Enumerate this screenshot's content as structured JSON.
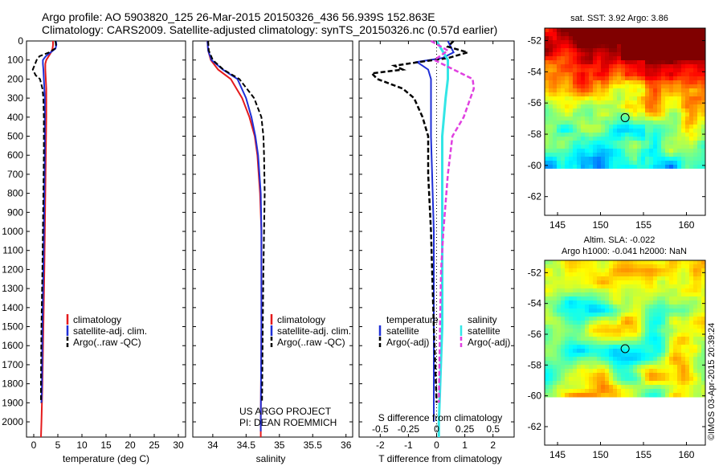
{
  "header": {
    "line1": "Argo profile: AO 5903820_125 26-Mar-2015 20150326_436 56.939S 152.863E",
    "line2": "Climatology: CARS2009. Satellite-adjusted climatology: synTS_20150326.nc (0.57d earlier)"
  },
  "colors": {
    "climatology": "#e41a1c",
    "satellite": "#1f2fd6",
    "argo": "#000000",
    "salinity_satellite": "#33e6e6",
    "salinity_argo": "#e040e0"
  },
  "chart_data": [
    {
      "type": "line",
      "id": "temperature",
      "xlabel": "temperature (deg C)",
      "xlim": [
        -1.5,
        31.5
      ],
      "xticks": [
        "0",
        "5",
        "10",
        "15",
        "20",
        "25",
        "30"
      ],
      "ylim": [
        2080,
        0
      ],
      "yticks": [
        "0",
        "100",
        "200",
        "300",
        "400",
        "500",
        "600",
        "700",
        "800",
        "900",
        "1000",
        "1100",
        "1200",
        "1300",
        "1400",
        "1500",
        "1600",
        "1700",
        "1800",
        "1900",
        "2000"
      ],
      "legend": [
        "climatology",
        "satellite-adj. clim.",
        "Argo(..raw -QC)"
      ],
      "series": [
        {
          "name": "climatology",
          "depth": [
            0,
            20,
            40,
            60,
            80,
            100,
            120,
            150,
            200,
            250,
            300,
            400,
            600,
            800,
            1000,
            1200,
            1500,
            1800,
            2000,
            2080
          ],
          "values": [
            4.0,
            4.0,
            3.9,
            3.6,
            3.1,
            2.6,
            2.4,
            2.4,
            2.5,
            2.6,
            2.6,
            2.6,
            2.5,
            2.4,
            2.3,
            2.2,
            2.0,
            1.8,
            1.6,
            1.5
          ]
        },
        {
          "name": "satellite-adj. clim.",
          "depth": [
            0,
            20,
            40,
            60,
            80,
            100,
            120,
            150,
            200,
            250,
            300,
            400,
            600,
            800,
            1000,
            1200,
            1500,
            1800,
            1900
          ],
          "values": [
            4.6,
            4.7,
            4.5,
            3.5,
            2.5,
            1.9,
            1.9,
            2.0,
            2.1,
            2.2,
            2.3,
            2.3,
            2.3,
            2.2,
            2.1,
            2.0,
            1.8,
            1.7,
            1.6
          ]
        },
        {
          "name": "Argo(..raw -QC)",
          "depth": [
            0,
            20,
            40,
            60,
            80,
            100,
            120,
            150,
            180,
            200,
            250,
            300,
            400,
            600,
            800,
            1000,
            1200,
            1500,
            1800,
            1900
          ],
          "values": [
            4.5,
            4.6,
            4.4,
            3.2,
            1.2,
            0.6,
            0.3,
            -0.2,
            0.4,
            1.3,
            1.8,
            2.0,
            2.1,
            2.1,
            2.0,
            1.9,
            1.8,
            1.6,
            1.5,
            1.5
          ]
        }
      ]
    },
    {
      "type": "line",
      "id": "salinity",
      "xlabel": "salinity",
      "xlim": [
        33.7,
        36.1
      ],
      "xticks": [
        "34",
        "34.5",
        "35",
        "35.5",
        "36"
      ],
      "ylim": [
        2080,
        0
      ],
      "legend": [
        "climatology",
        "satellite-adj. clim.",
        "Argo(..raw -QC)"
      ],
      "annotation": [
        "US ARGO PROJECT",
        "PI: DEAN ROEMMICH"
      ],
      "series": [
        {
          "name": "climatology",
          "depth": [
            0,
            50,
            100,
            150,
            200,
            300,
            400,
            500,
            600,
            800,
            1000,
            1200,
            1500,
            2000,
            2080
          ],
          "values": [
            33.92,
            33.93,
            33.97,
            34.08,
            34.27,
            34.44,
            34.55,
            34.63,
            34.67,
            34.71,
            34.73,
            34.73,
            34.73,
            34.72,
            34.72
          ]
        },
        {
          "name": "satellite-adj. clim.",
          "depth": [
            0,
            50,
            100,
            150,
            200,
            300,
            400,
            500,
            600,
            800,
            1000,
            1200,
            1500,
            2000,
            2050
          ],
          "values": [
            33.92,
            33.93,
            33.98,
            34.15,
            34.37,
            34.5,
            34.58,
            34.64,
            34.68,
            34.72,
            34.73,
            34.73,
            34.73,
            34.72,
            34.72
          ]
        },
        {
          "name": "Argo(..raw -QC)",
          "depth": [
            0,
            50,
            100,
            150,
            200,
            300,
            400,
            500,
            600,
            800,
            1000,
            1200,
            1500,
            1900
          ],
          "values": [
            33.93,
            33.94,
            34.0,
            34.16,
            34.4,
            34.62,
            34.73,
            34.76,
            34.77,
            34.78,
            34.77,
            34.76,
            34.75,
            34.74
          ]
        }
      ]
    },
    {
      "type": "line",
      "id": "differences",
      "xlabel_t": "T difference from climatology",
      "xlabel_s": "S difference from climatology",
      "t_xlim": [
        -2.75,
        2.75
      ],
      "t_xticks": [
        "-2",
        "-1",
        "0",
        "1",
        "2"
      ],
      "s_xticks": [
        "-0.5",
        "-0.25",
        "0",
        "0.25",
        "0.5"
      ],
      "ylim": [
        2080,
        0
      ],
      "legend_t_title": "temperature",
      "legend_s_title": "salinity",
      "legend_t": [
        "satellite",
        "Argo(-adj)"
      ],
      "legend_s": [
        "satellite",
        "Argo(-adj)"
      ],
      "series": [
        {
          "name": "T satellite",
          "depth": [
            0,
            30,
            60,
            90,
            110,
            130,
            150,
            200,
            300,
            500,
            1000,
            1500,
            2000
          ],
          "values": [
            0.4,
            0.5,
            0.6,
            0.2,
            -0.7,
            -0.5,
            -0.3,
            -0.2,
            -0.2,
            -0.2,
            -0.1,
            -0.1,
            -0.1
          ]
        },
        {
          "name": "T Argo(-adj)",
          "depth": [
            0,
            30,
            60,
            90,
            110,
            130,
            150,
            170,
            200,
            250,
            300,
            400,
            500,
            700,
            1000,
            1500,
            1900
          ],
          "values": [
            0.6,
            0.4,
            1.1,
            0.4,
            -0.6,
            -1.5,
            -1.2,
            -2.3,
            -2.1,
            -1.2,
            -0.8,
            -0.5,
            -0.3,
            -0.3,
            -0.2,
            -0.1,
            0.0
          ]
        },
        {
          "name": "S satellite",
          "depth": [
            0,
            50,
            100,
            200,
            300,
            500,
            800,
            1000,
            1500,
            2000,
            2080
          ],
          "values": [
            0.0,
            0.05,
            0.1,
            0.1,
            0.08,
            0.05,
            0.05,
            0.05,
            0.05,
            0.02,
            0.02
          ]
        },
        {
          "name": "S Argo(-adj)",
          "depth": [
            0,
            50,
            100,
            150,
            200,
            250,
            300,
            400,
            500,
            700,
            1000,
            1200,
            1500,
            1900
          ],
          "values": [
            -0.05,
            0.1,
            -0.02,
            0.15,
            0.32,
            0.33,
            0.3,
            0.24,
            0.14,
            0.1,
            0.06,
            0.04,
            0.03,
            0.02
          ]
        }
      ]
    },
    {
      "type": "heatmap",
      "id": "sst-map",
      "title": "sat. SST: 3.92 Argo: 3.86",
      "xlim": [
        143.5,
        162.2
      ],
      "ylim": [
        -63.2,
        -51.2
      ],
      "xticks": [
        "145",
        "150",
        "155",
        "160"
      ],
      "yticks": [
        "-52",
        "-54",
        "-56",
        "-58",
        "-60",
        "-62"
      ],
      "data_south_limit": -60,
      "marker": {
        "lon": 152.863,
        "lat": -56.939
      }
    },
    {
      "type": "heatmap",
      "id": "sla-map",
      "title_line1": "Altim. SLA: -0.022",
      "title_line2": "Argo h1000: -0.041 h2000: NaN",
      "xlim": [
        143.5,
        162.2
      ],
      "ylim": [
        -63.2,
        -51.2
      ],
      "xticks": [
        "145",
        "150",
        "155",
        "160"
      ],
      "yticks": [
        "-52",
        "-54",
        "-56",
        "-58",
        "-60",
        "-62"
      ],
      "data_south_limit": -60,
      "marker": {
        "lon": 152.863,
        "lat": -56.939
      }
    }
  ],
  "footer": {
    "credit": "©IMOS 03-Apr-2015 20:39:24"
  }
}
